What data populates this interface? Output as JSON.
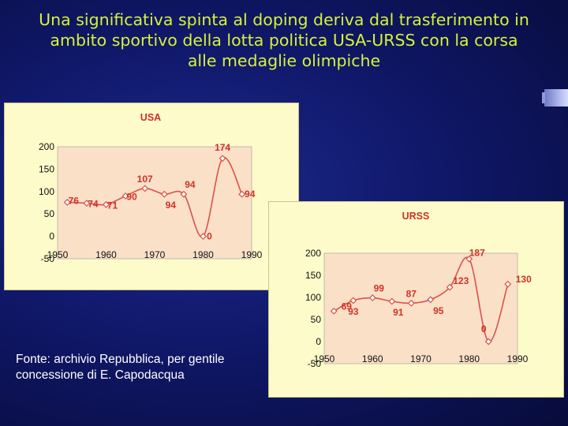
{
  "title_lines": [
    "Una significativa spinta al doping deriva dal trasferimento in",
    "ambito sportivo della lotta politica USA-URSS con la corsa",
    "alle medaglie olimpiche"
  ],
  "caption_lines": [
    "Fonte: archivio Repubblica, per gentile",
    "concessione di E. Capodacqua"
  ],
  "colors": {
    "title": "#d6f23a",
    "series_line": "#d9524a",
    "chart_title": "#d0312a",
    "panel_bg": "#fdfbc9",
    "plot_bg": "#fbe0c8"
  },
  "chart_data": [
    {
      "type": "line",
      "title": "USA",
      "x": [
        1952,
        1956,
        1960,
        1964,
        1968,
        1972,
        1976,
        1980,
        1984,
        1988
      ],
      "values": [
        76,
        74,
        71,
        90,
        107,
        94,
        94,
        0,
        174,
        94
      ],
      "data_labels": [
        "76",
        "74",
        "71",
        "90",
        "107",
        "94",
        "94",
        "0",
        "174",
        "94"
      ],
      "x_ticks": [
        "1950",
        "1960",
        "1970",
        "1980",
        "1990"
      ],
      "y_ticks": [
        "200",
        "150",
        "100",
        "50",
        "0",
        "-50"
      ],
      "xlim": [
        1950,
        1990
      ],
      "ylim": [
        -50,
        200
      ],
      "grid": false
    },
    {
      "type": "line",
      "title": "URSS",
      "x": [
        1952,
        1956,
        1960,
        1964,
        1968,
        1972,
        1976,
        1980,
        1984,
        1988
      ],
      "values": [
        69,
        93,
        99,
        91,
        87,
        95,
        123,
        187,
        0,
        130
      ],
      "data_labels": [
        "69",
        "93",
        "99",
        "91",
        "87",
        "95",
        "123",
        "187",
        "0",
        "130"
      ],
      "x_ticks": [
        "1950",
        "1960",
        "1970",
        "1980",
        "1990"
      ],
      "y_ticks": [
        "200",
        "150",
        "100",
        "50",
        "0",
        "-50"
      ],
      "xlim": [
        1950,
        1990
      ],
      "ylim": [
        -50,
        200
      ],
      "grid": false
    }
  ]
}
